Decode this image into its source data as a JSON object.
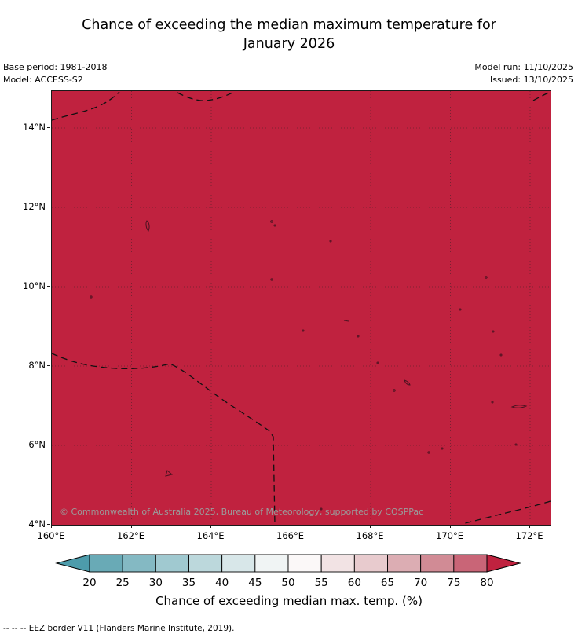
{
  "header": {
    "title_line1": "Chance of exceeding the median maximum temperature for",
    "title_line2": "January 2026",
    "base_period": "Base period: 1981-2018",
    "model": "Model: ACCESS-S2",
    "model_run": "Model run: 11/10/2025",
    "issued": "Issued: 13/10/2025"
  },
  "map": {
    "fill_color": "#c0223f",
    "copyright": "© Commonwealth of Australia 2025, Bureau of Meteorology, supported by COSPPac",
    "x_ticks": [
      "160°E",
      "162°E",
      "164°E",
      "166°E",
      "168°E",
      "170°E",
      "172°E"
    ],
    "y_ticks": [
      "14°N",
      "12°N",
      "10°N",
      "8°N",
      "6°N",
      "4°N"
    ]
  },
  "colorbar": {
    "label": "Chance of exceeding median max. temp. (%)",
    "tick_labels": [
      "20",
      "25",
      "30",
      "35",
      "40",
      "45",
      "50",
      "55",
      "60",
      "65",
      "70",
      "75",
      "80"
    ],
    "left_arrow_color": "#4d9cab",
    "right_arrow_color": "#c0223f",
    "segment_colors": [
      "#69aab6",
      "#84b9c3",
      "#a0c9d0",
      "#bcd8dc",
      "#d8e7e9",
      "#f0f4f4",
      "#fbf8f8",
      "#f2e3e4",
      "#e8cbce",
      "#dcadb3",
      "#d18b95",
      "#c96577"
    ]
  },
  "footer": {
    "eez_note": "--  --  --  EEZ border V11 (Flanders Marine Institute, 2019)."
  },
  "chart_data": {
    "type": "heatmap",
    "title": "Chance of exceeding the median maximum temperature for January 2026",
    "x_axis_ticks_deg_east": [
      160,
      162,
      164,
      166,
      168,
      170,
      172
    ],
    "y_axis_ticks_deg_north": [
      4,
      6,
      8,
      10,
      12,
      14
    ],
    "x_range_deg_east": [
      160,
      172.5
    ],
    "y_range_deg_north": [
      4,
      15
    ],
    "field_summary": "Entire mapped region shaded in the highest category (> 80% chance of exceeding the median maximum temperature)",
    "colorbar": {
      "label": "Chance of exceeding median max. temp. (%)",
      "ticks": [
        20,
        25,
        30,
        35,
        40,
        45,
        50,
        55,
        60,
        65,
        70,
        75,
        80
      ],
      "extends_below": true,
      "extends_above": true
    },
    "overlays": [
      "EEZ border V11 dashed lines",
      "small island outlines"
    ],
    "grid": true,
    "legend_position": "bottom"
  }
}
